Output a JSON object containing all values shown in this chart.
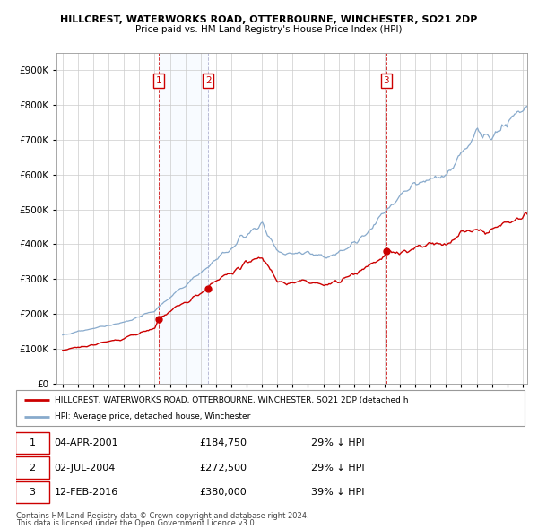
{
  "title1": "HILLCREST, WATERWORKS ROAD, OTTERBOURNE, WINCHESTER, SO21 2DP",
  "title2": "Price paid vs. HM Land Registry's House Price Index (HPI)",
  "legend_label_red": "HILLCREST, WATERWORKS ROAD, OTTERBOURNE, WINCHESTER, SO21 2DP (detached h",
  "legend_label_blue": "HPI: Average price, detached house, Winchester",
  "footer1": "Contains HM Land Registry data © Crown copyright and database right 2024.",
  "footer2": "This data is licensed under the Open Government Licence v3.0.",
  "sales": [
    {
      "label": "1",
      "date_str": "04-APR-2001",
      "price": 184750,
      "x": 2001.25,
      "vline_color": "#cc0000",
      "vline_style": "dashed"
    },
    {
      "label": "2",
      "date_str": "02-JUL-2004",
      "price": 272500,
      "x": 2004.5,
      "vline_color": "#aaaacc",
      "vline_style": "dashed"
    },
    {
      "label": "3",
      "date_str": "12-FEB-2016",
      "price": 380000,
      "x": 2016.1,
      "vline_color": "#cc0000",
      "vline_style": "dashed"
    }
  ],
  "table_rows": [
    {
      "num": "1",
      "date": "04-APR-2001",
      "price": "£184,750",
      "hpi": "29% ↓ HPI"
    },
    {
      "num": "2",
      "date": "02-JUL-2004",
      "price": "£272,500",
      "hpi": "29% ↓ HPI"
    },
    {
      "num": "3",
      "date": "12-FEB-2016",
      "price": "£380,000",
      "hpi": "39% ↓ HPI"
    }
  ],
  "ylim": [
    0,
    950000
  ],
  "xlim_left": 1994.6,
  "xlim_right": 2025.3,
  "red_color": "#cc0000",
  "blue_color": "#88aacc",
  "shade_color": "#ddeeff",
  "grid_color": "#cccccc",
  "background_color": "#ffffff"
}
